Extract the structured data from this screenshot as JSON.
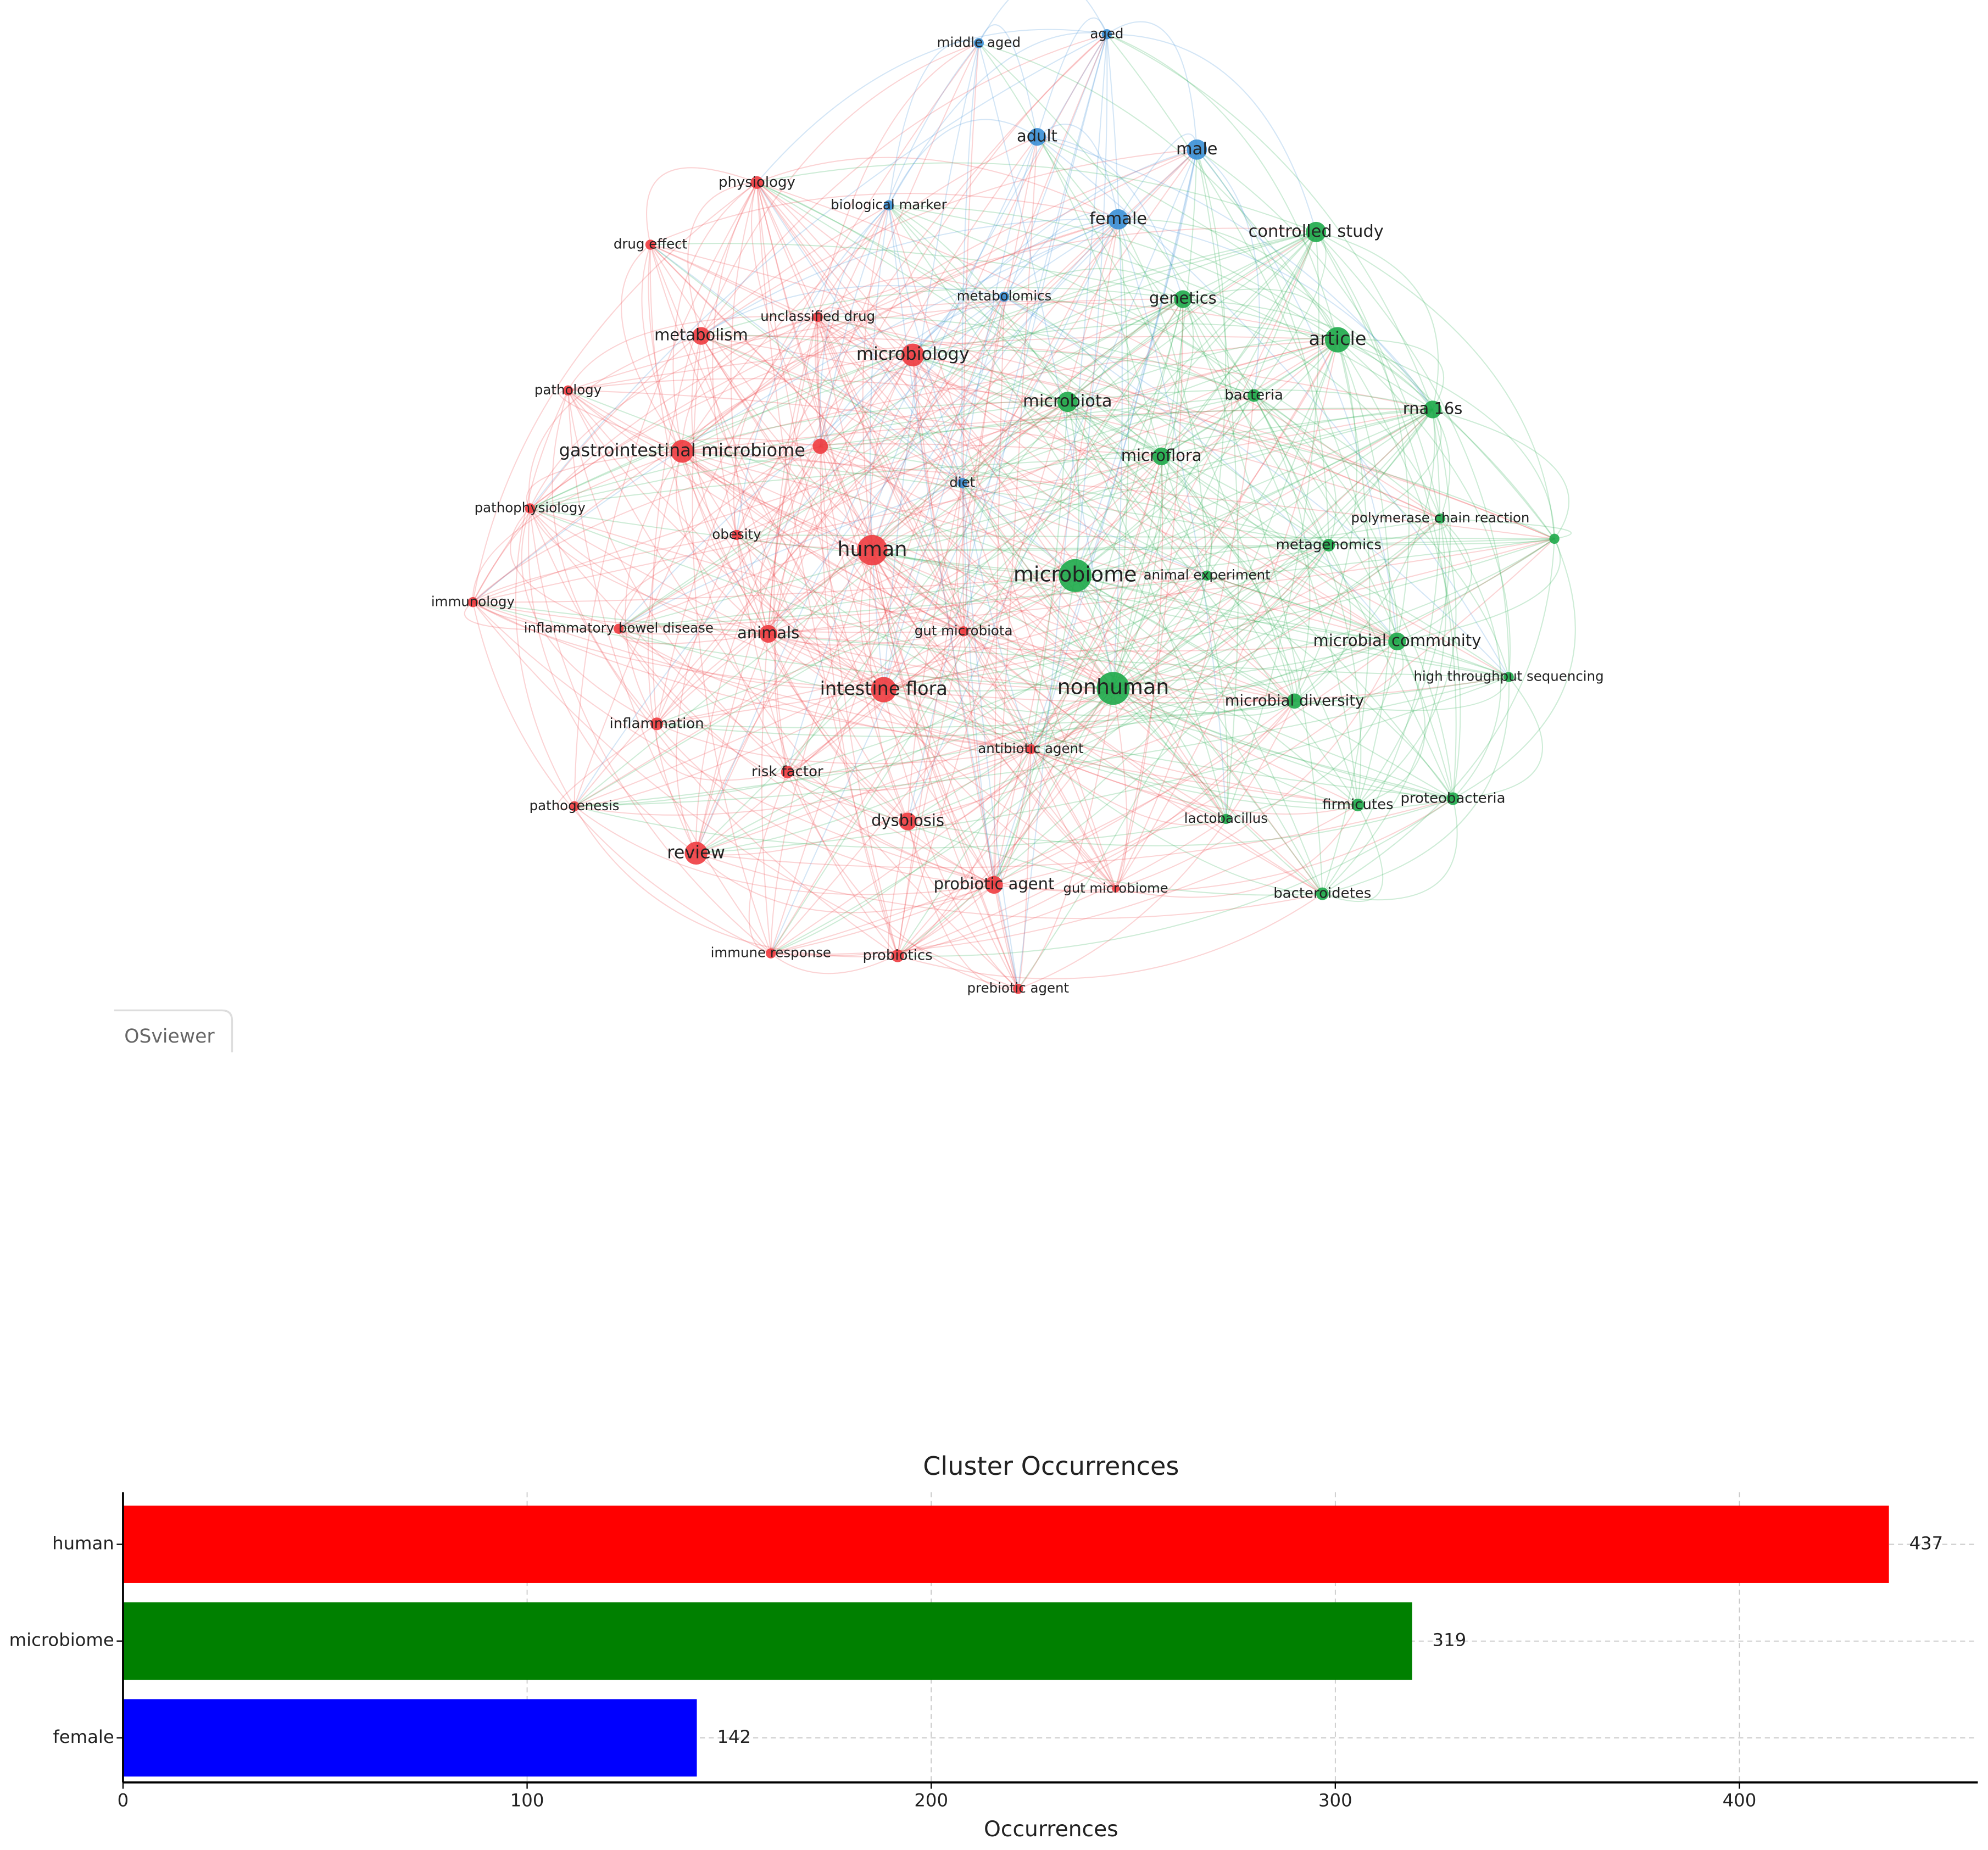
{
  "network": {
    "clusters": [
      {
        "color": "#ee3b3f",
        "nodes": [
          "human",
          "intestine flora",
          "gastrointestinal microbiome",
          "review",
          "microbiology",
          "metabolism",
          "animals",
          "dysbiosis",
          "probiotic agent",
          "physiology",
          "drug effect",
          "unclassified drug",
          "pathology",
          "pathophysiology",
          "obesity",
          "immunology",
          "inflammatory bowel disease",
          "inflammation",
          "risk factor",
          "pathogenesis",
          "immune response",
          "probiotics",
          "prebiotic agent",
          "antibiotic agent",
          "gut microbiota",
          "gut microbiome"
        ]
      },
      {
        "color": "#3a8fd6",
        "nodes": [
          "middle aged",
          "aged",
          "adult",
          "male",
          "female",
          "biological marker",
          "metabolomics",
          "diet"
        ]
      },
      {
        "color": "#1eaa4a",
        "nodes": [
          "controlled study",
          "article",
          "genetics",
          "microbiota",
          "bacteria",
          "rna 16s",
          "microflora",
          "microbiome",
          "animal experiment",
          "metagenomics",
          "polymerase chain reaction",
          "microbial community",
          "nonhuman",
          "microbial diversity",
          "high throughput sequencing",
          "firmicutes",
          "proteobacteria",
          "lactobacillus",
          "bacteroidetes"
        ]
      }
    ],
    "watermark": "OSviewer"
  },
  "chart_data": {
    "type": "barh",
    "title": "Cluster Occurrences",
    "x_label": "Occurrences",
    "categories": [
      "human",
      "microbiome",
      "female"
    ],
    "values": [
      437,
      319,
      142
    ],
    "colors": [
      "#ff0000",
      "#008000",
      "#0000ff"
    ],
    "xlim": [
      0,
      459
    ],
    "xticks": [
      0,
      100,
      200,
      300,
      400
    ],
    "grid": true
  }
}
